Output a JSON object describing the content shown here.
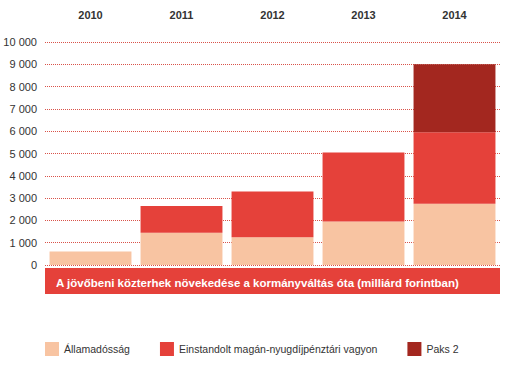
{
  "chart_data": {
    "type": "bar",
    "title": "A jövőbeni közterhek növekedése a kormányváltás óta (milliárd forintban)",
    "categories": [
      "2010",
      "2011",
      "2012",
      "2013",
      "2014"
    ],
    "stacked": true,
    "grid": true,
    "legend": "bottom",
    "ylim": [
      0,
      10000
    ],
    "yticks": [
      0,
      {
        "value": 1000,
        "label": "1 000"
      },
      {
        "value": 2000,
        "label": "2 000"
      },
      {
        "value": 3000,
        "label": "3 000"
      },
      {
        "value": 4000,
        "label": "4 000"
      },
      {
        "value": 5000,
        "label": "5 000"
      },
      {
        "value": 6000,
        "label": "6 000"
      },
      {
        "value": 7000,
        "label": "7 000"
      },
      {
        "value": 8000,
        "label": "8 000"
      },
      {
        "value": 9000,
        "label": "9 000"
      },
      {
        "value": 10000,
        "label": "10 000"
      }
    ],
    "series": [
      {
        "name": "Államadósság",
        "color": "#f8c4a2",
        "values": [
          600,
          1450,
          1250,
          1950,
          2750
        ]
      },
      {
        "name": "Einstandolt magán-nyugdíjpénztári vagyon",
        "color": "#e5413a",
        "values": [
          null,
          1200,
          2050,
          3100,
          3200
        ]
      },
      {
        "name": "Paks 2",
        "color": "#a3271f",
        "values": [
          null,
          null,
          null,
          null,
          3050
        ]
      }
    ]
  }
}
